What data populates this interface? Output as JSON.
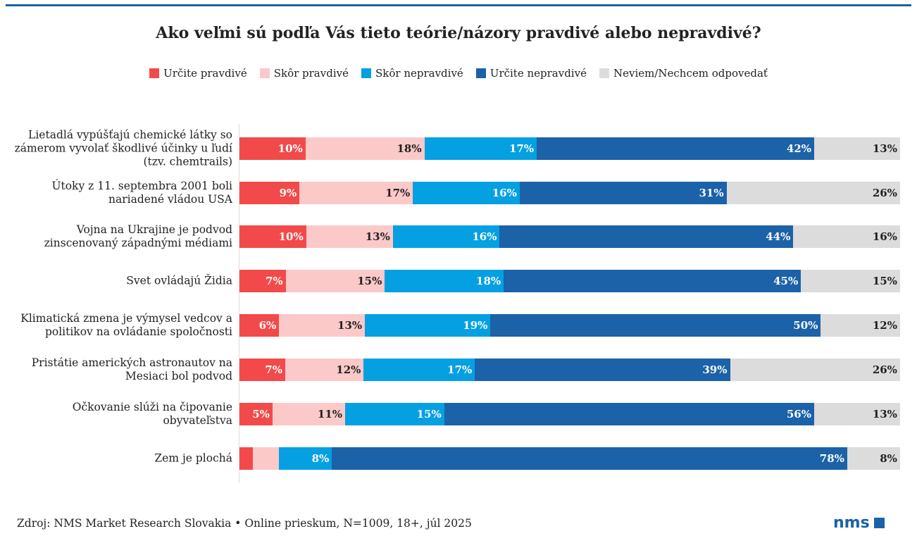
{
  "title": "Ako veľmi sú podľa Vás tieto teórie/názory pravdivé alebo nepravdivé?",
  "source": "Zdroj: NMS Market Research Slovakia • Online prieskum, N=1009, 18+, júl 2025",
  "logo": "nms",
  "chart_data": {
    "type": "bar",
    "orientation": "horizontal-stacked-100",
    "title": "Ako veľmi sú podľa Vás tieto teórie/názory pravdivé alebo nepravdivé?",
    "legend_position": "top",
    "categories": [
      "Lietadlá vypúšťajú chemické látky so zámerom vyvolať škodlivé účinky u ľudí (tzv. chemtrails)",
      "Útoky z 11. septembra 2001 boli nariadené vládou USA",
      "Vojna na Ukrajine je podvod zinscenovaný západnými médiami",
      "Svet ovládajú Židia",
      "Klimatická zmena je výmysel vedcov a politikov na ovládanie spoločnosti",
      "Pristátie amerických astronautov na Mesiaci bol podvod",
      "Očkovanie slúži na čipovanie obyvateľstva",
      "Zem je plochá"
    ],
    "series": [
      {
        "name": "Určite pravdivé",
        "color": "#f24a4a",
        "text": "#fff",
        "values": [
          10,
          9,
          10,
          7,
          6,
          7,
          5,
          2
        ],
        "labels": [
          "10%",
          "9%",
          "10%",
          "7%",
          "6%",
          "7%",
          "5%",
          ""
        ]
      },
      {
        "name": "Skôr pravdivé",
        "color": "#fcc9c9",
        "text": "#222",
        "values": [
          18,
          17,
          13,
          15,
          13,
          12,
          11,
          4
        ],
        "labels": [
          "18%",
          "17%",
          "13%",
          "15%",
          "13%",
          "12%",
          "11%",
          ""
        ]
      },
      {
        "name": "Skôr nepravdivé",
        "color": "#05a0e2",
        "text": "#fff",
        "values": [
          17,
          16,
          16,
          18,
          19,
          17,
          15,
          8
        ],
        "labels": [
          "17%",
          "16%",
          "16%",
          "18%",
          "19%",
          "17%",
          "15%",
          "8%"
        ]
      },
      {
        "name": "Určite nepravdivé",
        "color": "#1b62a8",
        "text": "#fff",
        "values": [
          42,
          31,
          44,
          45,
          50,
          39,
          56,
          78
        ],
        "labels": [
          "42%",
          "31%",
          "44%",
          "45%",
          "50%",
          "39%",
          "56%",
          "78%"
        ]
      },
      {
        "name": "Neviem/Nechcem odpovedať",
        "color": "#dcdcdc",
        "text": "#222",
        "values": [
          13,
          26,
          16,
          15,
          12,
          26,
          13,
          8
        ],
        "labels": [
          "13%",
          "26%",
          "16%",
          "15%",
          "12%",
          "26%",
          "13%",
          "8%"
        ]
      }
    ]
  }
}
